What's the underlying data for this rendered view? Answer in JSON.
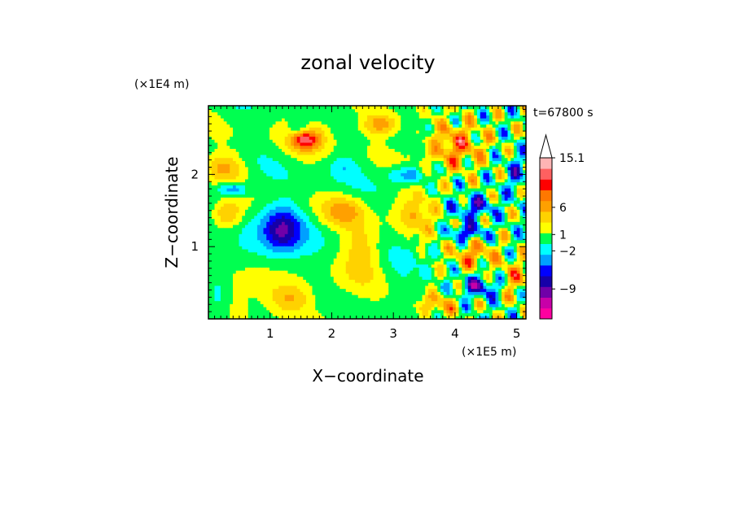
{
  "chart_data": {
    "type": "heatmap",
    "title": "zonal velocity",
    "xlabel": "X−coordinate",
    "ylabel": "Z−coordinate",
    "x_multiplier_label": "(×1E5 m)",
    "y_multiplier_label": "(×1E4 m)",
    "time_label": "t=67800 s",
    "xlim": [
      0,
      5.15
    ],
    "ylim": [
      0,
      2.95
    ],
    "x_ticks": [
      1,
      2,
      3,
      4,
      5
    ],
    "y_ticks": [
      1,
      2
    ],
    "x_tick_labels": [
      "1",
      "2",
      "3",
      "4",
      "5"
    ],
    "y_tick_labels": [
      "1",
      "2"
    ],
    "colorbar": {
      "labels": [
        "15.1",
        "6",
        "1",
        "−2",
        "−9"
      ],
      "label_values": [
        15.1,
        6,
        1,
        -2,
        -9
      ],
      "top_extend": "open triangle",
      "levels": [
        {
          "color": "#ff00a0"
        },
        {
          "color": "#c800a8"
        },
        {
          "color": "#7000a8"
        },
        {
          "color": "#1600a8"
        },
        {
          "color": "#0000ff"
        },
        {
          "color": "#00a0ff"
        },
        {
          "color": "#00ffff"
        },
        {
          "color": "#00ff50"
        },
        {
          "color": "#ffff00"
        },
        {
          "color": "#ffd200"
        },
        {
          "color": "#ffa000"
        },
        {
          "color": "#ff7800"
        },
        {
          "color": "#ff0000"
        },
        {
          "color": "#ff6060"
        },
        {
          "color": "#ffb4b4"
        }
      ]
    },
    "field_features": [
      {
        "x": 1.6,
        "z": 2.55,
        "value": 7,
        "sx": 0.35,
        "sz": 0.22
      },
      {
        "x": 1.55,
        "z": 2.5,
        "value": 9,
        "sx": 0.18,
        "sz": 0.12
      },
      {
        "x": 1.5,
        "z": 2.6,
        "value": -8,
        "sx": 0.22,
        "sz": 0.15
      },
      {
        "x": 1.2,
        "z": 1.25,
        "value": -7,
        "sx": 0.3,
        "sz": 0.3
      },
      {
        "x": 1.0,
        "z": 1.05,
        "value": -3,
        "sx": 0.55,
        "sz": 0.45
      },
      {
        "x": 0.4,
        "z": 1.8,
        "value": -6,
        "sx": 0.25,
        "sz": 0.1
      },
      {
        "x": 0.25,
        "z": 2.1,
        "value": 5,
        "sx": 0.3,
        "sz": 0.2
      },
      {
        "x": 0.3,
        "z": 1.45,
        "value": 6,
        "sx": 0.25,
        "sz": 0.2
      },
      {
        "x": 0.7,
        "z": 0.55,
        "value": 4,
        "sx": 0.45,
        "sz": 0.25
      },
      {
        "x": 1.3,
        "z": 0.3,
        "value": 5,
        "sx": 0.35,
        "sz": 0.2
      },
      {
        "x": 2.3,
        "z": 0.5,
        "value": 1.5,
        "sx": 0.45,
        "sz": 0.4
      },
      {
        "x": 2.5,
        "z": 1.0,
        "value": 3.5,
        "sx": 0.3,
        "sz": 0.35
      },
      {
        "x": 2.2,
        "z": 1.5,
        "value": 5,
        "sx": 0.35,
        "sz": 0.2
      },
      {
        "x": 2.8,
        "z": 2.7,
        "value": 6,
        "sx": 0.3,
        "sz": 0.15
      },
      {
        "x": 2.2,
        "z": 2.1,
        "value": -2.5,
        "sx": 0.25,
        "sz": 0.15
      },
      {
        "x": 3.2,
        "z": 2.0,
        "value": -5,
        "sx": 0.3,
        "sz": 0.12
      },
      {
        "x": 3.4,
        "z": 1.5,
        "value": 4,
        "sx": 0.35,
        "sz": 0.3
      },
      {
        "x": 4.0,
        "z": 2.4,
        "value": 7,
        "sx": 0.45,
        "sz": 0.3
      },
      {
        "x": 4.3,
        "z": 1.55,
        "value": -6,
        "sx": 0.35,
        "sz": 0.15
      },
      {
        "x": 4.2,
        "z": 1.2,
        "value": -7,
        "sx": 0.3,
        "sz": 0.12
      },
      {
        "x": 4.3,
        "z": 0.9,
        "value": 6,
        "sx": 0.35,
        "sz": 0.2
      },
      {
        "x": 4.4,
        "z": 0.45,
        "value": -7,
        "sx": 0.35,
        "sz": 0.15
      },
      {
        "x": 4.95,
        "z": 0.55,
        "value": 5,
        "sx": 0.25,
        "sz": 0.25
      },
      {
        "x": 3.1,
        "z": 0.6,
        "value": -1,
        "sx": 0.35,
        "sz": 0.3
      },
      {
        "x": 3.7,
        "z": 0.2,
        "value": 5,
        "sx": 0.35,
        "sz": 0.15
      },
      {
        "x": 5.0,
        "z": 2.0,
        "value": -4,
        "sx": 0.2,
        "sz": 0.3
      },
      {
        "x": 0.15,
        "z": 0.3,
        "value": -3,
        "sx": 0.2,
        "sz": 0.3
      }
    ]
  }
}
